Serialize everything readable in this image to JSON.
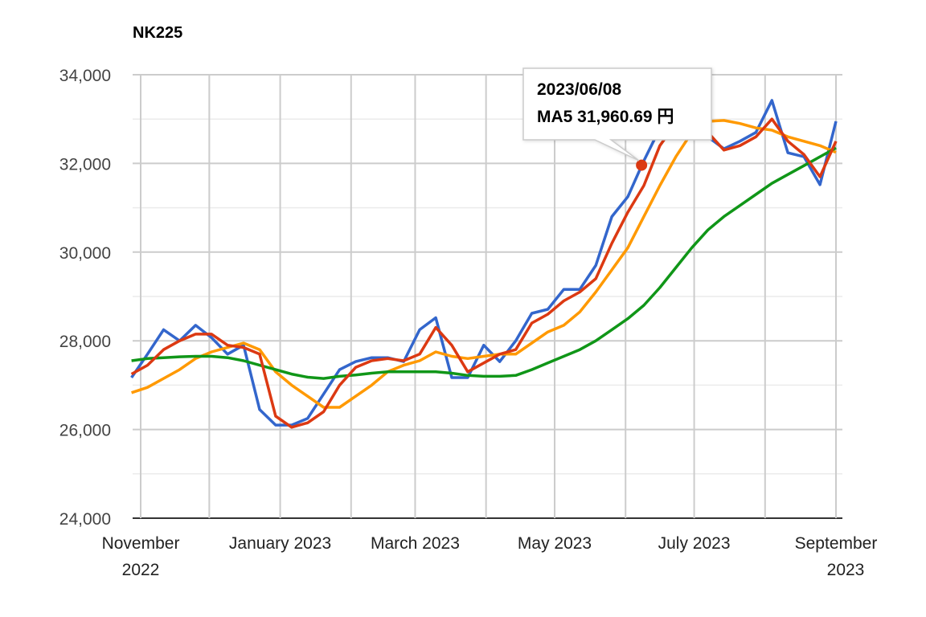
{
  "chart_data": {
    "type": "line",
    "title": "NK225",
    "xlabel": "",
    "ylabel": "",
    "ylim": [
      24000,
      34000
    ],
    "y_ticks": [
      "24,000",
      "26,000",
      "28,000",
      "30,000",
      "32,000",
      "34,000"
    ],
    "y_tick_values": [
      24000,
      26000,
      28000,
      30000,
      32000,
      34000
    ],
    "y_minor_step": 1000,
    "x_range": [
      "2022-10-28",
      "2023-09-04"
    ],
    "x_gridline_months": [
      "2022-11-01",
      "2022-12-01",
      "2023-01-01",
      "2023-02-01",
      "2023-03-01",
      "2023-04-01",
      "2023-05-01",
      "2023-06-01",
      "2023-07-01",
      "2023-08-01",
      "2023-09-01"
    ],
    "x_ticks": [
      {
        "date": "2022-11-01",
        "line1": "November",
        "line2": "2022"
      },
      {
        "date": "2023-01-01",
        "line1": "January 2023",
        "line2": ""
      },
      {
        "date": "2023-03-01",
        "line1": "March 2023",
        "line2": ""
      },
      {
        "date": "2023-05-01",
        "line1": "May 2023",
        "line2": ""
      },
      {
        "date": "2023-07-01",
        "line1": "July 2023",
        "line2": ""
      },
      {
        "date": "2023-09-01",
        "line1": "September",
        "line2": "2023"
      }
    ],
    "grid": true,
    "legend": "none",
    "x": [
      "2022-10-28",
      "2022-11-04",
      "2022-11-11",
      "2022-11-18",
      "2022-11-25",
      "2022-12-02",
      "2022-12-09",
      "2022-12-16",
      "2022-12-23",
      "2022-12-30",
      "2023-01-06",
      "2023-01-13",
      "2023-01-20",
      "2023-01-27",
      "2023-02-03",
      "2023-02-10",
      "2023-02-17",
      "2023-02-24",
      "2023-03-03",
      "2023-03-10",
      "2023-03-17",
      "2023-03-24",
      "2023-03-31",
      "2023-04-07",
      "2023-04-14",
      "2023-04-21",
      "2023-04-28",
      "2023-05-05",
      "2023-05-12",
      "2023-05-19",
      "2023-05-26",
      "2023-06-02",
      "2023-06-09",
      "2023-06-16",
      "2023-06-23",
      "2023-06-30",
      "2023-07-07",
      "2023-07-14",
      "2023-07-21",
      "2023-07-28",
      "2023-08-04",
      "2023-08-11",
      "2023-08-18",
      "2023-08-25",
      "2023-09-01"
    ],
    "series": [
      {
        "color": "#3366cc",
        "values": [
          27170,
          27700,
          28250,
          28000,
          28350,
          28070,
          27700,
          27900,
          26450,
          26100,
          26100,
          26250,
          26800,
          27350,
          27530,
          27620,
          27620,
          27530,
          28250,
          28520,
          27170,
          27170,
          27900,
          27530,
          28000,
          28620,
          28710,
          29160,
          29160,
          29700,
          30800,
          31250,
          32060,
          32790,
          33150,
          32970,
          32600,
          32330,
          32500,
          32700,
          33420,
          32240,
          32150,
          31520,
          32950
        ]
      },
      {
        "color": "#ff9900",
        "values": [
          26830,
          26950,
          27150,
          27350,
          27600,
          27750,
          27850,
          27950,
          27800,
          27300,
          27000,
          26750,
          26500,
          26500,
          26750,
          27000,
          27300,
          27450,
          27550,
          27750,
          27650,
          27600,
          27650,
          27700,
          27700,
          27950,
          28200,
          28350,
          28650,
          29100,
          29600,
          30100,
          30800,
          31500,
          32150,
          32700,
          32950,
          32970,
          32900,
          32800,
          32750,
          32600,
          32500,
          32400,
          32250
        ]
      },
      {
        "color": "#109618",
        "values": [
          27550,
          27600,
          27620,
          27640,
          27650,
          27650,
          27620,
          27550,
          27450,
          27350,
          27250,
          27180,
          27150,
          27200,
          27230,
          27270,
          27300,
          27300,
          27300,
          27300,
          27270,
          27220,
          27200,
          27200,
          27220,
          27350,
          27500,
          27650,
          27800,
          28000,
          28250,
          28500,
          28800,
          29200,
          29650,
          30100,
          30500,
          30800,
          31050,
          31300,
          31550,
          31750,
          31950,
          32150,
          32350
        ]
      },
      {
        "color": "#dc3912",
        "values": [
          27250,
          27450,
          27800,
          28000,
          28150,
          28150,
          27900,
          27850,
          27700,
          26300,
          26050,
          26150,
          26400,
          27000,
          27400,
          27550,
          27600,
          27550,
          27700,
          28300,
          27900,
          27300,
          27500,
          27700,
          27800,
          28400,
          28600,
          28900,
          29100,
          29400,
          30200,
          30900,
          31500,
          32400,
          32900,
          32900,
          32700,
          32300,
          32400,
          32600,
          33000,
          32500,
          32200,
          31700,
          32500
        ]
      }
    ],
    "highlight": {
      "date": "2023-06-08",
      "value": 31960.69,
      "color": "#dc3912",
      "tooltip_date": "2023/06/08",
      "tooltip_value": "MA5 31,960.69 円"
    }
  }
}
